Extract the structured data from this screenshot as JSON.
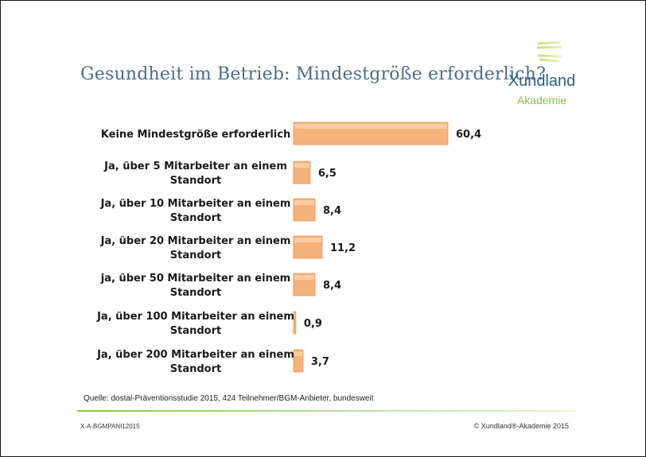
{
  "title": "Gesundheit im Betrieb: Mindestgröße erforderlich?",
  "logo": {
    "name": "Xundland",
    "sub": "Akademie",
    "accent": "#8bc34a",
    "brand": "#2e5f8c"
  },
  "chart_data": {
    "type": "bar",
    "orientation": "horizontal",
    "title": "Gesundheit im Betrieb: Mindestgröße erforderlich?",
    "categories": [
      [
        "Keine Mindestgröße erforderlich"
      ],
      [
        "Ja, über 5 Mitarbeiter an einem",
        "Standort"
      ],
      [
        "Ja, über 10 Mitarbeiter an einem",
        "Standort"
      ],
      [
        "Ja, über 20 Mitarbeiter an einem",
        "Standort"
      ],
      [
        "ja, über 50 Mitarbeiter an einem",
        "Standort"
      ],
      [
        "Ja, über 100 Mitarbeiter an einem",
        "Standort"
      ],
      [
        "Ja, über 200 Mitarbeiter an einem",
        "Standort"
      ]
    ],
    "values": [
      60.4,
      6.5,
      8.4,
      11.2,
      8.4,
      0.9,
      3.7
    ],
    "value_labels": [
      "60,4",
      "6,5",
      "8,4",
      "11,2",
      "8,4",
      "0,9",
      "3,7"
    ],
    "xlim": [
      0,
      60.4
    ],
    "bar_color": "#f5b27a",
    "grid": false,
    "legend": "none"
  },
  "source": "Quelle: dostal-Präventionsstudie 2015,  424 Teilnehmer/BGM-Anbieter, bundesweit",
  "footer": {
    "left": "X-A-BGMPANI12015",
    "right": "© Xundland®-Akademie 2015"
  }
}
